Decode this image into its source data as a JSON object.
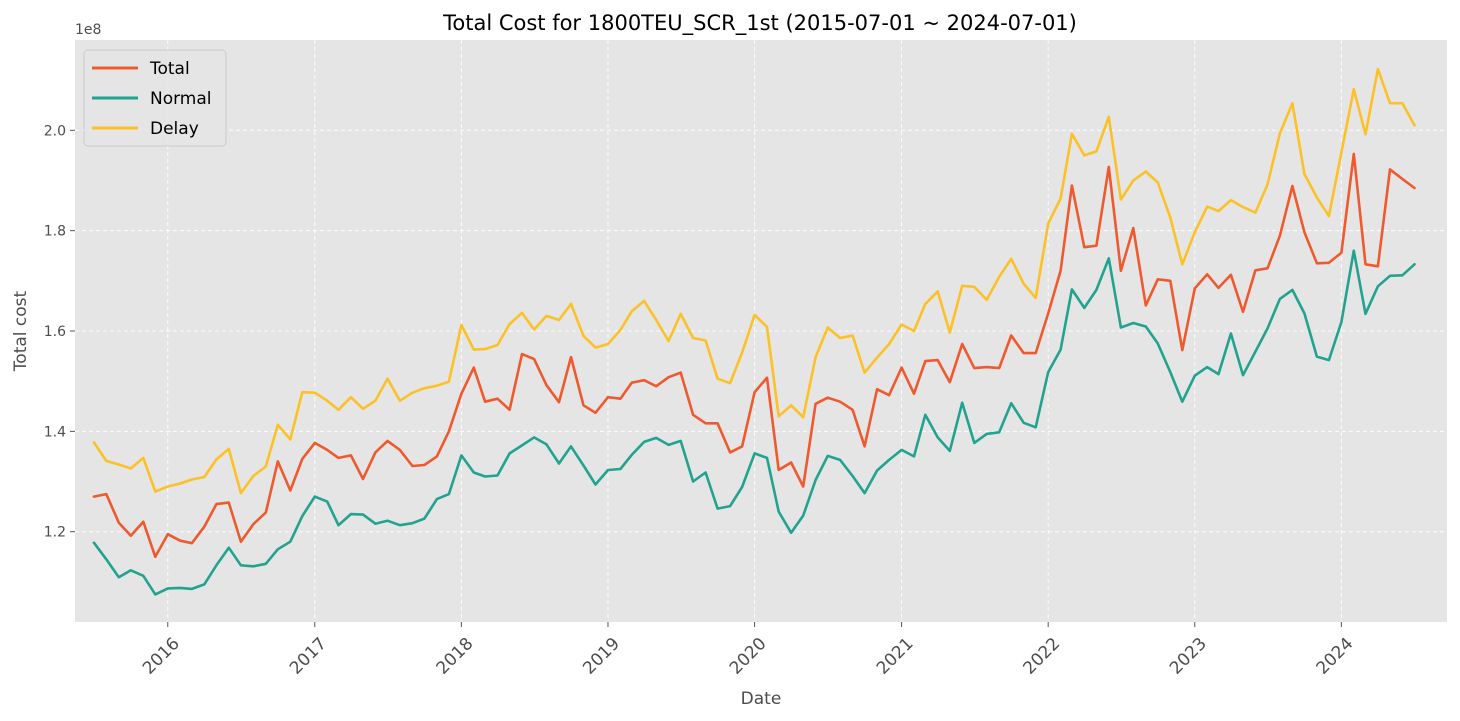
{
  "chart_data": {
    "type": "line",
    "title": "Total Cost for 1800TEU_SCR_1st (2015-07-01 ~ 2024-07-01)",
    "xlabel": "Date",
    "ylabel": "Total cost",
    "y_scale_label": "1e8",
    "y_scale": 100000000,
    "xlim": [
      "2015-05-15",
      "2024-09-20"
    ],
    "ylim": [
      1.02,
      2.18
    ],
    "x_ticks": [
      "2016",
      "2017",
      "2018",
      "2019",
      "2020",
      "2021",
      "2022",
      "2023",
      "2024"
    ],
    "y_ticks": [
      1.2,
      1.4,
      1.6,
      1.8,
      2.0
    ],
    "y_tick_labels": [
      "1.2",
      "1.4",
      "1.6",
      "1.8",
      "2.0"
    ],
    "grid": true,
    "legend_position": "top-left",
    "colors": {
      "Total": "#ee5a2e",
      "Normal": "#21a38f",
      "Delay": "#fbc127",
      "plot_bg": "#e5e5e5"
    },
    "x_start": "2015-07",
    "x_end": "2024-07",
    "x_frequency": "monthly",
    "series": [
      {
        "name": "Total",
        "values": [
          1.27,
          1.275,
          1.218,
          1.192,
          1.22,
          1.15,
          1.195,
          1.182,
          1.177,
          1.21,
          1.255,
          1.258,
          1.18,
          1.215,
          1.238,
          1.34,
          1.282,
          1.345,
          1.377,
          1.363,
          1.347,
          1.352,
          1.305,
          1.358,
          1.381,
          1.363,
          1.331,
          1.333,
          1.35,
          1.4,
          1.475,
          1.527,
          1.459,
          1.465,
          1.443,
          1.554,
          1.544,
          1.492,
          1.458,
          1.548,
          1.452,
          1.437,
          1.468,
          1.465,
          1.497,
          1.502,
          1.49,
          1.508,
          1.517,
          1.433,
          1.416,
          1.416,
          1.358,
          1.37,
          1.478,
          1.507,
          1.323,
          1.338,
          1.29,
          1.455,
          1.467,
          1.459,
          1.443,
          1.37,
          1.484,
          1.472,
          1.527,
          1.475,
          1.54,
          1.542,
          1.498,
          1.574,
          1.526,
          1.528,
          1.526,
          1.591,
          1.556,
          1.556,
          1.635,
          1.72,
          1.89,
          1.767,
          1.77,
          1.927,
          1.72,
          1.805,
          1.651,
          1.703,
          1.7,
          1.562,
          1.685,
          1.713,
          1.686,
          1.712,
          1.638,
          1.721,
          1.725,
          1.79,
          1.889,
          1.797,
          1.735,
          1.736,
          1.756,
          1.953,
          1.733,
          1.729,
          1.922,
          1.903,
          1.885
        ]
      },
      {
        "name": "Normal",
        "values": [
          1.178,
          1.145,
          1.109,
          1.123,
          1.112,
          1.075,
          1.087,
          1.088,
          1.086,
          1.095,
          1.133,
          1.168,
          1.133,
          1.131,
          1.136,
          1.165,
          1.18,
          1.231,
          1.27,
          1.26,
          1.213,
          1.235,
          1.234,
          1.216,
          1.222,
          1.213,
          1.217,
          1.226,
          1.265,
          1.275,
          1.352,
          1.318,
          1.31,
          1.312,
          1.356,
          1.372,
          1.388,
          1.374,
          1.336,
          1.37,
          1.332,
          1.294,
          1.323,
          1.325,
          1.353,
          1.379,
          1.387,
          1.373,
          1.381,
          1.3,
          1.318,
          1.246,
          1.251,
          1.289,
          1.356,
          1.347,
          1.24,
          1.198,
          1.232,
          1.303,
          1.351,
          1.343,
          1.311,
          1.277,
          1.322,
          1.343,
          1.363,
          1.35,
          1.433,
          1.388,
          1.361,
          1.457,
          1.377,
          1.395,
          1.398,
          1.456,
          1.417,
          1.408,
          1.518,
          1.563,
          1.683,
          1.646,
          1.682,
          1.745,
          1.607,
          1.616,
          1.609,
          1.575,
          1.518,
          1.459,
          1.511,
          1.528,
          1.514,
          1.595,
          1.512,
          1.559,
          1.605,
          1.664,
          1.682,
          1.635,
          1.549,
          1.542,
          1.618,
          1.76,
          1.634,
          1.689,
          1.71,
          1.711,
          1.733
        ]
      },
      {
        "name": "Delay",
        "values": [
          1.378,
          1.341,
          1.334,
          1.326,
          1.347,
          1.28,
          1.29,
          1.296,
          1.304,
          1.309,
          1.344,
          1.365,
          1.277,
          1.311,
          1.33,
          1.413,
          1.384,
          1.478,
          1.477,
          1.461,
          1.443,
          1.468,
          1.445,
          1.461,
          1.505,
          1.461,
          1.477,
          1.486,
          1.491,
          1.499,
          1.612,
          1.563,
          1.564,
          1.572,
          1.614,
          1.636,
          1.603,
          1.63,
          1.622,
          1.654,
          1.59,
          1.567,
          1.574,
          1.602,
          1.639,
          1.66,
          1.622,
          1.58,
          1.634,
          1.586,
          1.581,
          1.505,
          1.496,
          1.557,
          1.632,
          1.608,
          1.43,
          1.452,
          1.428,
          1.548,
          1.607,
          1.586,
          1.591,
          1.517,
          1.547,
          1.574,
          1.613,
          1.6,
          1.654,
          1.679,
          1.597,
          1.69,
          1.688,
          1.662,
          1.708,
          1.744,
          1.694,
          1.666,
          1.814,
          1.864,
          1.993,
          1.95,
          1.958,
          2.027,
          1.862,
          1.9,
          1.918,
          1.896,
          1.826,
          1.733,
          1.797,
          1.848,
          1.839,
          1.861,
          1.847,
          1.836,
          1.892,
          1.994,
          2.054,
          1.913,
          1.866,
          1.829,
          1.956,
          2.082,
          1.992,
          2.122,
          2.054,
          2.054,
          2.01
        ]
      }
    ]
  }
}
